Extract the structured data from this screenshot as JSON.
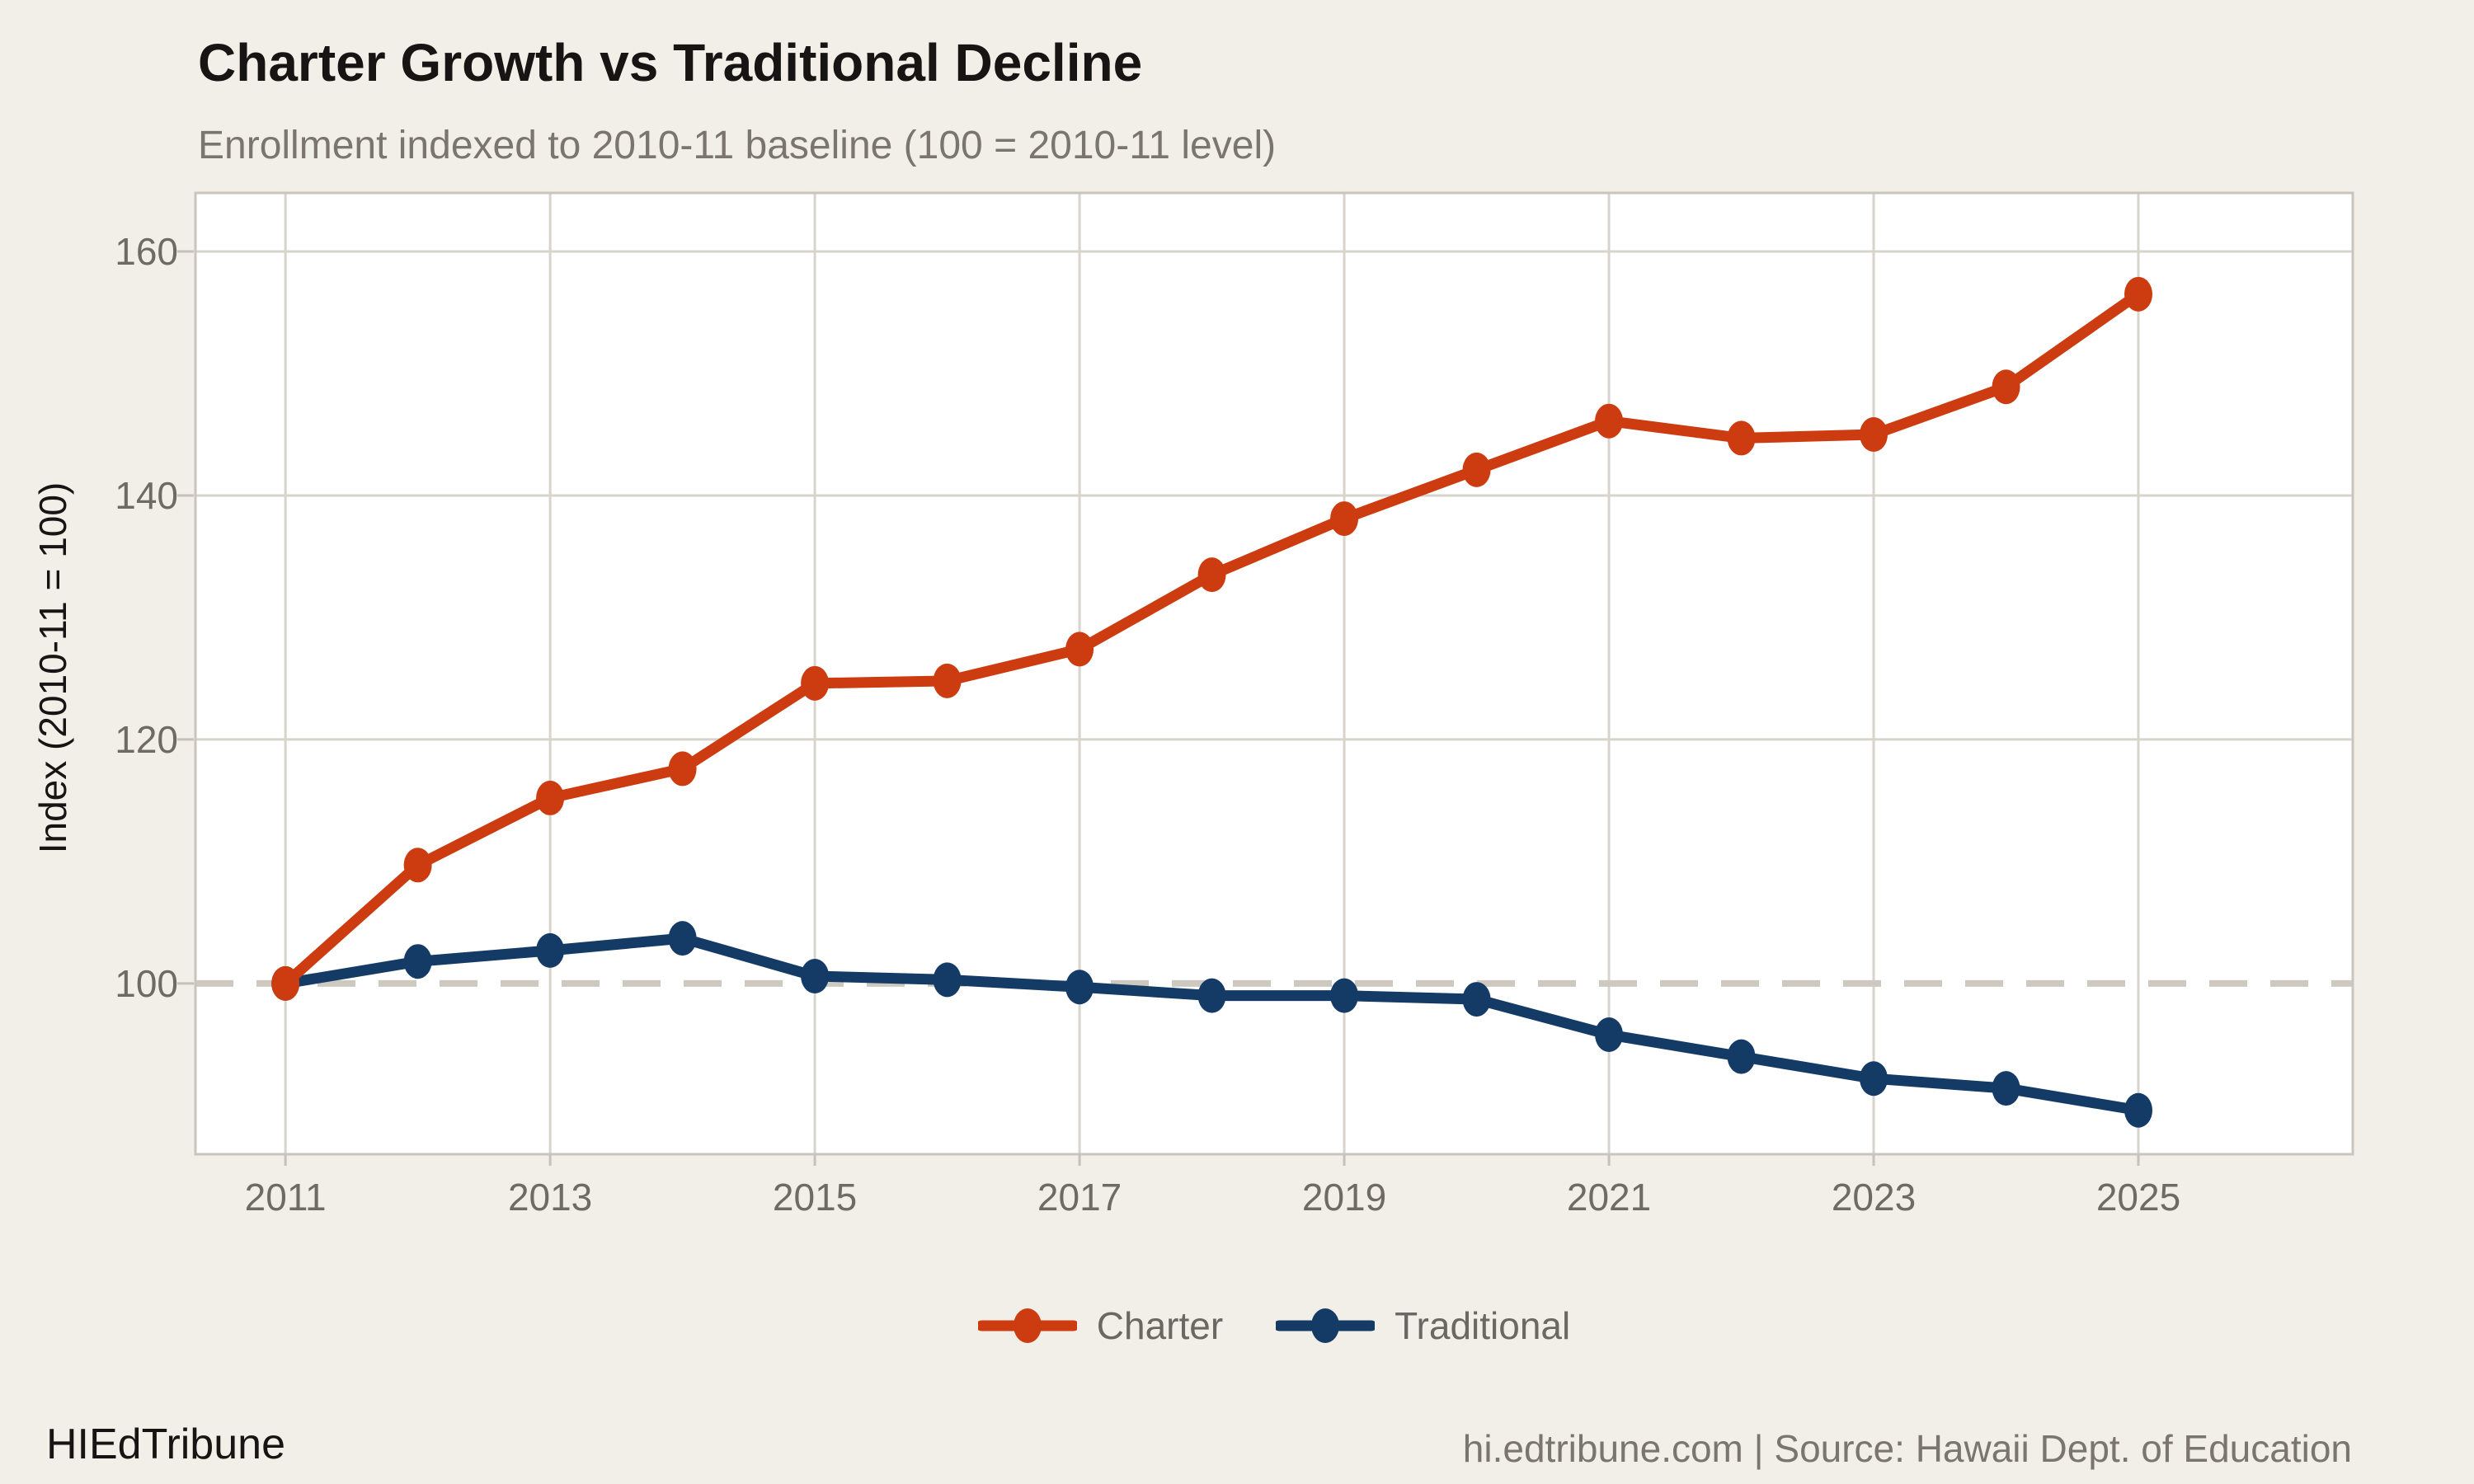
{
  "header": {
    "title": "Charter Growth vs Traditional Decline",
    "subtitle": "Enrollment indexed to 2010-11 baseline (100 = 2010-11 level)"
  },
  "footer": {
    "brand": "HIEdTribune",
    "source": "hi.edtribune.com | Source: Hawaii Dept. of Education"
  },
  "colors": {
    "background": "#f2efe8",
    "plot_background": "#ffffff",
    "grid": "#d8d4cc",
    "axis": "#c9c5bd",
    "baseline_dash": "#cdc9c1",
    "tick_mark": "#c6c2ba",
    "charter": "#cd3c10",
    "traditional": "#143b66",
    "title_text": "#161514",
    "subtitle_text": "#7a756e",
    "tick_text": "#6f6b64",
    "legend_text": "#6b6763"
  },
  "chart_data": {
    "type": "line",
    "title": "Charter Growth vs Traditional Decline",
    "subtitle": "Enrollment indexed to 2010-11 baseline (100 = 2010-11 level)",
    "xlabel": "",
    "ylabel": "Index (2010-11 = 100)",
    "x": [
      2011,
      2012,
      2013,
      2014,
      2015,
      2016,
      2017,
      2018,
      2019,
      2020,
      2021,
      2022,
      2023,
      2024,
      2025
    ],
    "series": [
      {
        "name": "Charter",
        "color": "#cd3c10",
        "values": [
          100,
          109.7,
          115.2,
          117.6,
          124.6,
          124.8,
          127.4,
          133.5,
          138.1,
          142.1,
          146.1,
          144.7,
          145.0,
          148.9,
          156.5
        ]
      },
      {
        "name": "Traditional",
        "color": "#143b66",
        "values": [
          100,
          101.8,
          102.7,
          103.7,
          100.6,
          100.3,
          99.7,
          99.0,
          99.0,
          98.7,
          95.8,
          94.0,
          92.2,
          91.4,
          89.6
        ]
      }
    ],
    "x_ticks": [
      "2011",
      "2013",
      "2015",
      "2017",
      "2019",
      "2021",
      "2023",
      "2025"
    ],
    "x_tick_years": [
      2011,
      2013,
      2015,
      2017,
      2019,
      2021,
      2023,
      2025
    ],
    "y_ticks": [
      100,
      120,
      140,
      160
    ],
    "y_gridlines": [
      120,
      140,
      160
    ],
    "baseline": 100,
    "xlim": [
      2010.32,
      2026.62
    ],
    "ylim": [
      86,
      164.8
    ],
    "grid": true,
    "legend_position": "bottom center"
  }
}
